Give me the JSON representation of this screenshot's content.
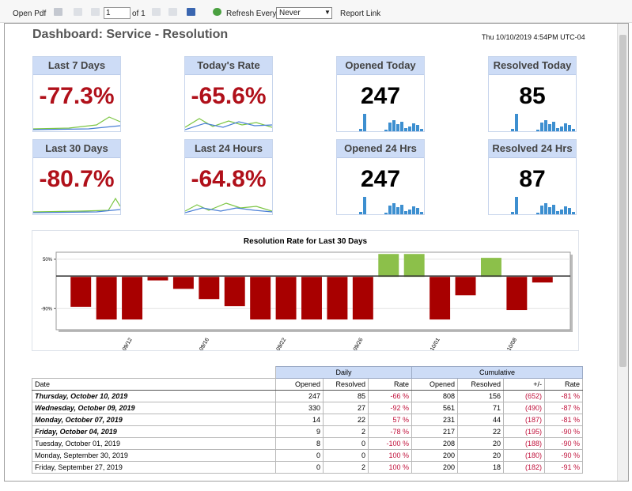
{
  "toolbar": {
    "open_pdf": "Open Pdf",
    "page": "1",
    "of": "of 1",
    "refresh_label": "Refresh Every",
    "refresh_value": "Never",
    "report_link": "Report Link"
  },
  "header": {
    "title": "Dashboard: Service - Resolution",
    "timestamp": "Thu 10/10/2019 4:54PM UTC-04"
  },
  "kpis": [
    {
      "label": "Last 7 Days",
      "value": "-77.3%"
    },
    {
      "label": "Today's Rate",
      "value": "-65.6%"
    },
    {
      "label": "Opened Today",
      "value": "247"
    },
    {
      "label": "Resolved Today",
      "value": "85"
    },
    {
      "label": "Last 30 Days",
      "value": "-80.7%"
    },
    {
      "label": "Last 24 Hours",
      "value": "-64.8%"
    },
    {
      "label": "Opened 24 Hrs",
      "value": "247"
    },
    {
      "label": "Resolved 24 Hrs",
      "value": "87"
    }
  ],
  "chart_data": {
    "type": "bar",
    "title": "Resolution Rate for Last 30 Days",
    "categories": [
      null,
      null,
      "09/12",
      null,
      null,
      "09/16",
      null,
      null,
      "09/22",
      null,
      null,
      "09/26",
      null,
      null,
      "10/01",
      null,
      null,
      "10/08",
      null
    ],
    "values": [
      -85,
      -121,
      -121,
      -10,
      -34,
      -63,
      -83,
      -121,
      -121,
      -121,
      -121,
      -121,
      65,
      65,
      -121,
      -52,
      54,
      -94,
      -16
    ],
    "color": "#a80000",
    "positive_color": "#8cc04a",
    "ylim": [
      -150,
      70
    ],
    "yticks": [
      {
        "value": -90,
        "label": "-90%"
      },
      {
        "value": 50,
        "label": "50%"
      }
    ],
    "grid": true
  },
  "table": {
    "group_headers": [
      "Daily",
      "Cumulative"
    ],
    "columns": [
      "Date",
      "Opened",
      "Resolved",
      "Rate",
      "Opened",
      "Resolved",
      "+/-",
      "Rate"
    ],
    "rows": [
      [
        "Thursday, October 10, 2019",
        "247",
        "85",
        "-66 %",
        "808",
        "156",
        "(652)",
        "-81 %"
      ],
      [
        "Wednesday, October 09, 2019",
        "330",
        "27",
        "-92 %",
        "561",
        "71",
        "(490)",
        "-87 %"
      ],
      [
        "Monday, October 07, 2019",
        "14",
        "22",
        "57 %",
        "231",
        "44",
        "(187)",
        "-81 %"
      ],
      [
        "Friday, October 04, 2019",
        "9",
        "2",
        "-78 %",
        "217",
        "22",
        "(195)",
        "-90 %"
      ],
      [
        "Tuesday, October 01, 2019",
        "8",
        "0",
        "-100 %",
        "208",
        "20",
        "(188)",
        "-90 %"
      ],
      [
        "Monday, September 30, 2019",
        "0",
        "0",
        "100 %",
        "200",
        "20",
        "(180)",
        "-90 %"
      ],
      [
        "Friday, September 27, 2019",
        "0",
        "2",
        "100 %",
        "200",
        "18",
        "(182)",
        "-91 %"
      ]
    ]
  }
}
